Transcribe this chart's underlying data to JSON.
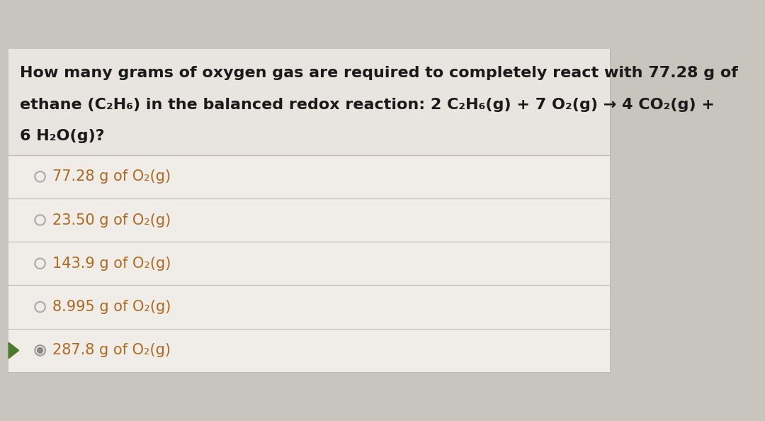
{
  "bg_color": "#c8c4be",
  "card_color": "#f0ede8",
  "question_bg_color": "#e8e4df",
  "question_text_line1": "How many grams of oxygen gas are required to completely react with 77.28 g of",
  "question_text_line2": "ethane (C₂H₆) in the balanced redox reaction: 2 C₂H₆(g) + 7 O₂(g) → 4 CO₂(g) +",
  "question_text_line3": "6 H₂O(g)?",
  "options": [
    {
      "text": "77.28 g of O₂(g)",
      "selected": false
    },
    {
      "text": "23.50 g of O₂(g)",
      "selected": false
    },
    {
      "text": "143.9 g of O₂(g)",
      "selected": false
    },
    {
      "text": "8.995 g of O₂(g)",
      "selected": false
    },
    {
      "text": "287.8 g of O₂(g)",
      "selected": true
    }
  ],
  "text_color": "#1a1a1a",
  "option_text_color": "#b06820",
  "radio_color": "#aaaaaa",
  "divider_color": "#c0bbb5",
  "arrow_color": "#4a7a2a",
  "font_size_question": 16,
  "font_size_option": 15
}
